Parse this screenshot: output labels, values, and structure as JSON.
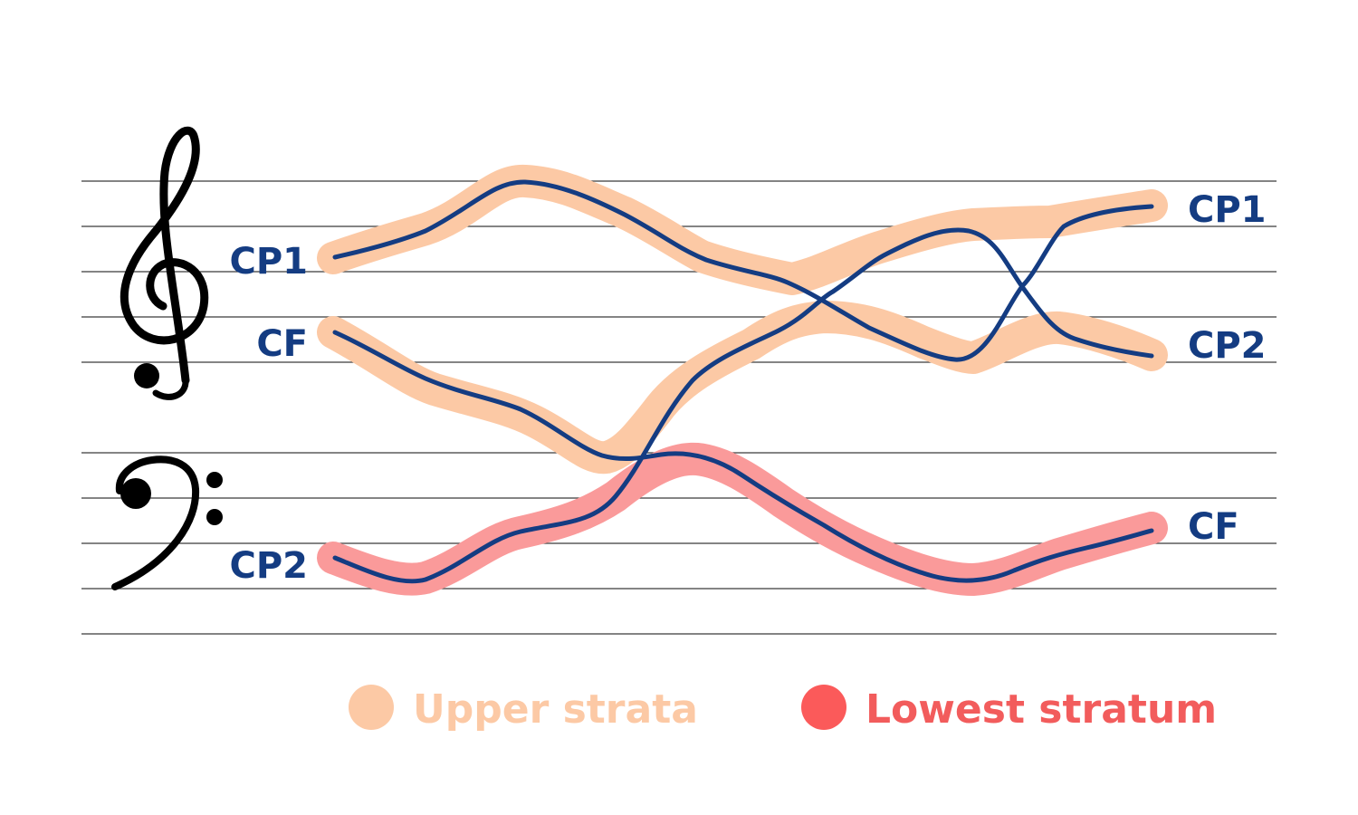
{
  "labels": {
    "left": {
      "cp1": "CP1",
      "cf": "CF",
      "cp2": "CP2"
    },
    "right": {
      "cp1": "CP1",
      "cp2": "CP2",
      "cf": "CF"
    }
  },
  "legend": {
    "upper": "Upper strata",
    "lowest": "Lowest stratum"
  },
  "colors": {
    "upper": "#fcc9a5",
    "lowest": "#fa9a9a",
    "upper_text": "#fcc9a5",
    "lowest_text": "#f25c5c",
    "lowest_dot": "#fb5a5a",
    "voice_line": "#143c82"
  },
  "icons": {
    "treble": "treble-clef-icon",
    "bass": "bass-clef-icon"
  }
}
